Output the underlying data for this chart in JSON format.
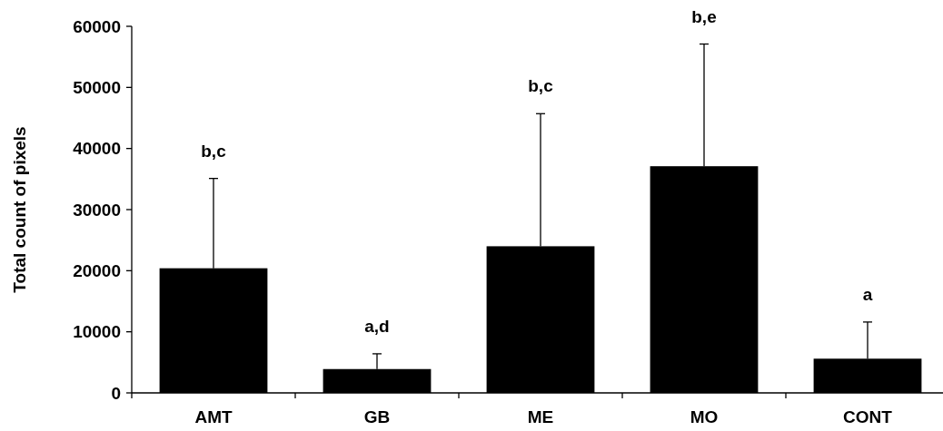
{
  "chart_data": {
    "type": "bar",
    "ylabel": "Total count of pixels",
    "categories": [
      "AMT",
      "GB",
      "ME",
      "MO",
      "CONT"
    ],
    "values": [
      20400,
      3900,
      24000,
      37100,
      5600
    ],
    "errors": [
      [
        20400,
        35100
      ],
      [
        3900,
        6400
      ],
      [
        24000,
        45700
      ],
      [
        37100,
        57100
      ],
      [
        5600,
        11600
      ]
    ],
    "color": "#000000",
    "ylim": [
      0,
      60000
    ],
    "yticks": [
      0,
      10000,
      20000,
      30000,
      40000,
      50000,
      60000
    ],
    "annotations": [
      {
        "text": "b,c",
        "x": "AMT",
        "y": 35100
      },
      {
        "text": "a,d",
        "x": "GB",
        "y": 6400
      },
      {
        "text": "b,c",
        "x": "ME",
        "y": 45700
      },
      {
        "text": "b,e",
        "x": "MO",
        "y": 57100
      },
      {
        "text": "a",
        "x": "CONT",
        "y": 11600
      }
    ],
    "grid": false
  }
}
